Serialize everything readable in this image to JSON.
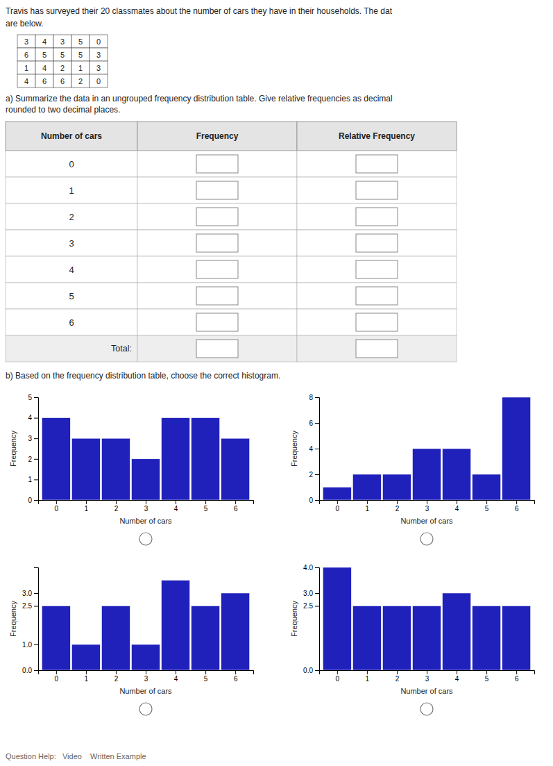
{
  "page": {
    "title_lines": [
      "Travis has surveyed their 20 classmates about the number of cars they have in their households. The dat",
      "are below."
    ],
    "raw_data": [
      [
        3,
        4,
        3,
        5,
        0
      ],
      [
        6,
        5,
        5,
        5,
        3
      ],
      [
        1,
        4,
        2,
        1,
        3
      ],
      [
        4,
        6,
        6,
        2,
        0
      ]
    ],
    "part_a": [
      "a) Summarize the data in an ungrouped frequency distribution table. Give relative frequencies as decimal",
      "rounded to two decimal places."
    ],
    "table": {
      "headers": [
        "Number of cars",
        "Frequency",
        "Relative Frequency"
      ],
      "rows": [
        0,
        1,
        2,
        3,
        4,
        5,
        6
      ],
      "total": "Total:"
    },
    "part_b": "b) Based on the frequency distribution table, choose the correct histogram.",
    "footer": "Question Help:   Video    Written Example"
  },
  "chart_data": [
    {
      "type": "bar",
      "x": [
        0,
        1,
        2,
        3,
        4,
        5,
        6
      ],
      "values": [
        4,
        3,
        3,
        2,
        4,
        4,
        3
      ],
      "color": "#2020bb",
      "x_label": "Number of cars",
      "y_label": "Frequency",
      "xlim": [
        -0.6,
        6.6
      ],
      "xticks": [
        0,
        1,
        2,
        3,
        4,
        5,
        6
      ],
      "ylim": [
        0,
        5
      ],
      "yticks": [
        0,
        1,
        2,
        3,
        4,
        5
      ],
      "grid": false
    },
    {
      "type": "bar",
      "x": [
        0,
        1,
        2,
        3,
        4,
        5,
        6
      ],
      "values": [
        1,
        2,
        2,
        4,
        4,
        2,
        8
      ],
      "color": "#2020bb",
      "x_label": "Number of cars",
      "y_label": "Frequency",
      "xlim": [
        -0.6,
        6.6
      ],
      "xticks": [
        0,
        1,
        2,
        3,
        4,
        5,
        6
      ],
      "ylim": [
        0,
        8
      ],
      "yticks": [
        0,
        2,
        4,
        6,
        8
      ],
      "grid": false
    },
    {
      "type": "bar",
      "x": [
        0,
        1,
        2,
        3,
        4,
        5,
        6
      ],
      "values": [
        2.5,
        1.0,
        2.5,
        1.0,
        3.5,
        2.5,
        3.0
      ],
      "color": "#2020bb",
      "x_label": "Number of cars",
      "y_label": "Frequency",
      "xlim": [
        -0.6,
        6.6
      ],
      "xticks": [
        0,
        1,
        2,
        3,
        4,
        5,
        6
      ],
      "ylim": [
        0,
        4
      ],
      "yticks": [
        {
          "value": 0,
          "label": "0.0"
        },
        {
          "value": 1.0,
          "label": "1.0"
        },
        2.5,
        {
          "value": 3.0,
          "label": "3.0"
        }
      ],
      "grid": false
    },
    {
      "type": "bar",
      "x": [
        0,
        1,
        2,
        3,
        4,
        5,
        6
      ],
      "values": [
        4.0,
        2.5,
        2.5,
        2.5,
        3.0,
        2.5,
        2.5
      ],
      "color": "#2020bb",
      "x_label": "Number of cars",
      "y_label": "Frequency",
      "xlim": [
        -0.6,
        6.6
      ],
      "xticks": [
        0,
        1,
        2,
        3,
        4,
        5,
        6
      ],
      "ylim": [
        0,
        4
      ],
      "yticks": [
        {
          "value": 0,
          "label": "0.0"
        },
        2.5,
        {
          "value": 3.0,
          "label": "3.0"
        },
        {
          "value": 4.0,
          "label": "4.0"
        }
      ],
      "grid": false
    }
  ]
}
